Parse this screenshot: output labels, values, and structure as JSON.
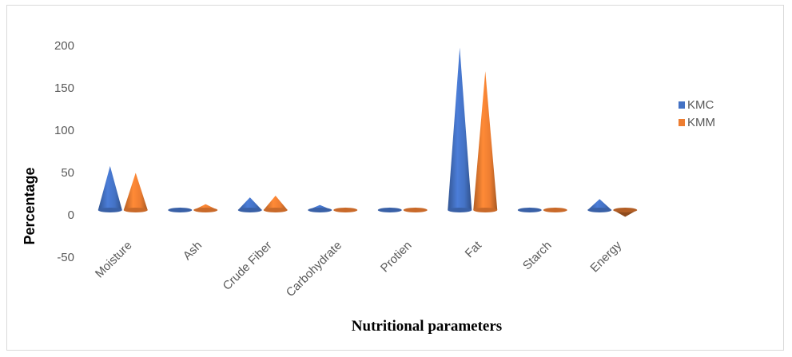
{
  "chart_data": {
    "type": "bar",
    "subtype": "3d-cone",
    "title": "",
    "xlabel": "Nutritional parameters",
    "ylabel": "Percentage",
    "ylim": [
      -50,
      200
    ],
    "yticks": [
      "-50",
      "0",
      "50",
      "100",
      "150",
      "200"
    ],
    "categories": [
      "Moisture",
      "Ash",
      "Crude Fiber",
      "Carbohydrate",
      "Protien",
      "Fat",
      "Starch",
      "Energy"
    ],
    "series": [
      {
        "name": "KMC",
        "color": "#4472c4",
        "values": [
          52,
          3,
          15,
          6,
          3,
          192,
          3,
          13
        ]
      },
      {
        "name": "KMM",
        "color": "#ed7d31",
        "values": [
          44,
          7,
          17,
          3,
          3,
          164,
          3,
          -8
        ]
      }
    ],
    "legend_position": "right",
    "grid": false
  }
}
